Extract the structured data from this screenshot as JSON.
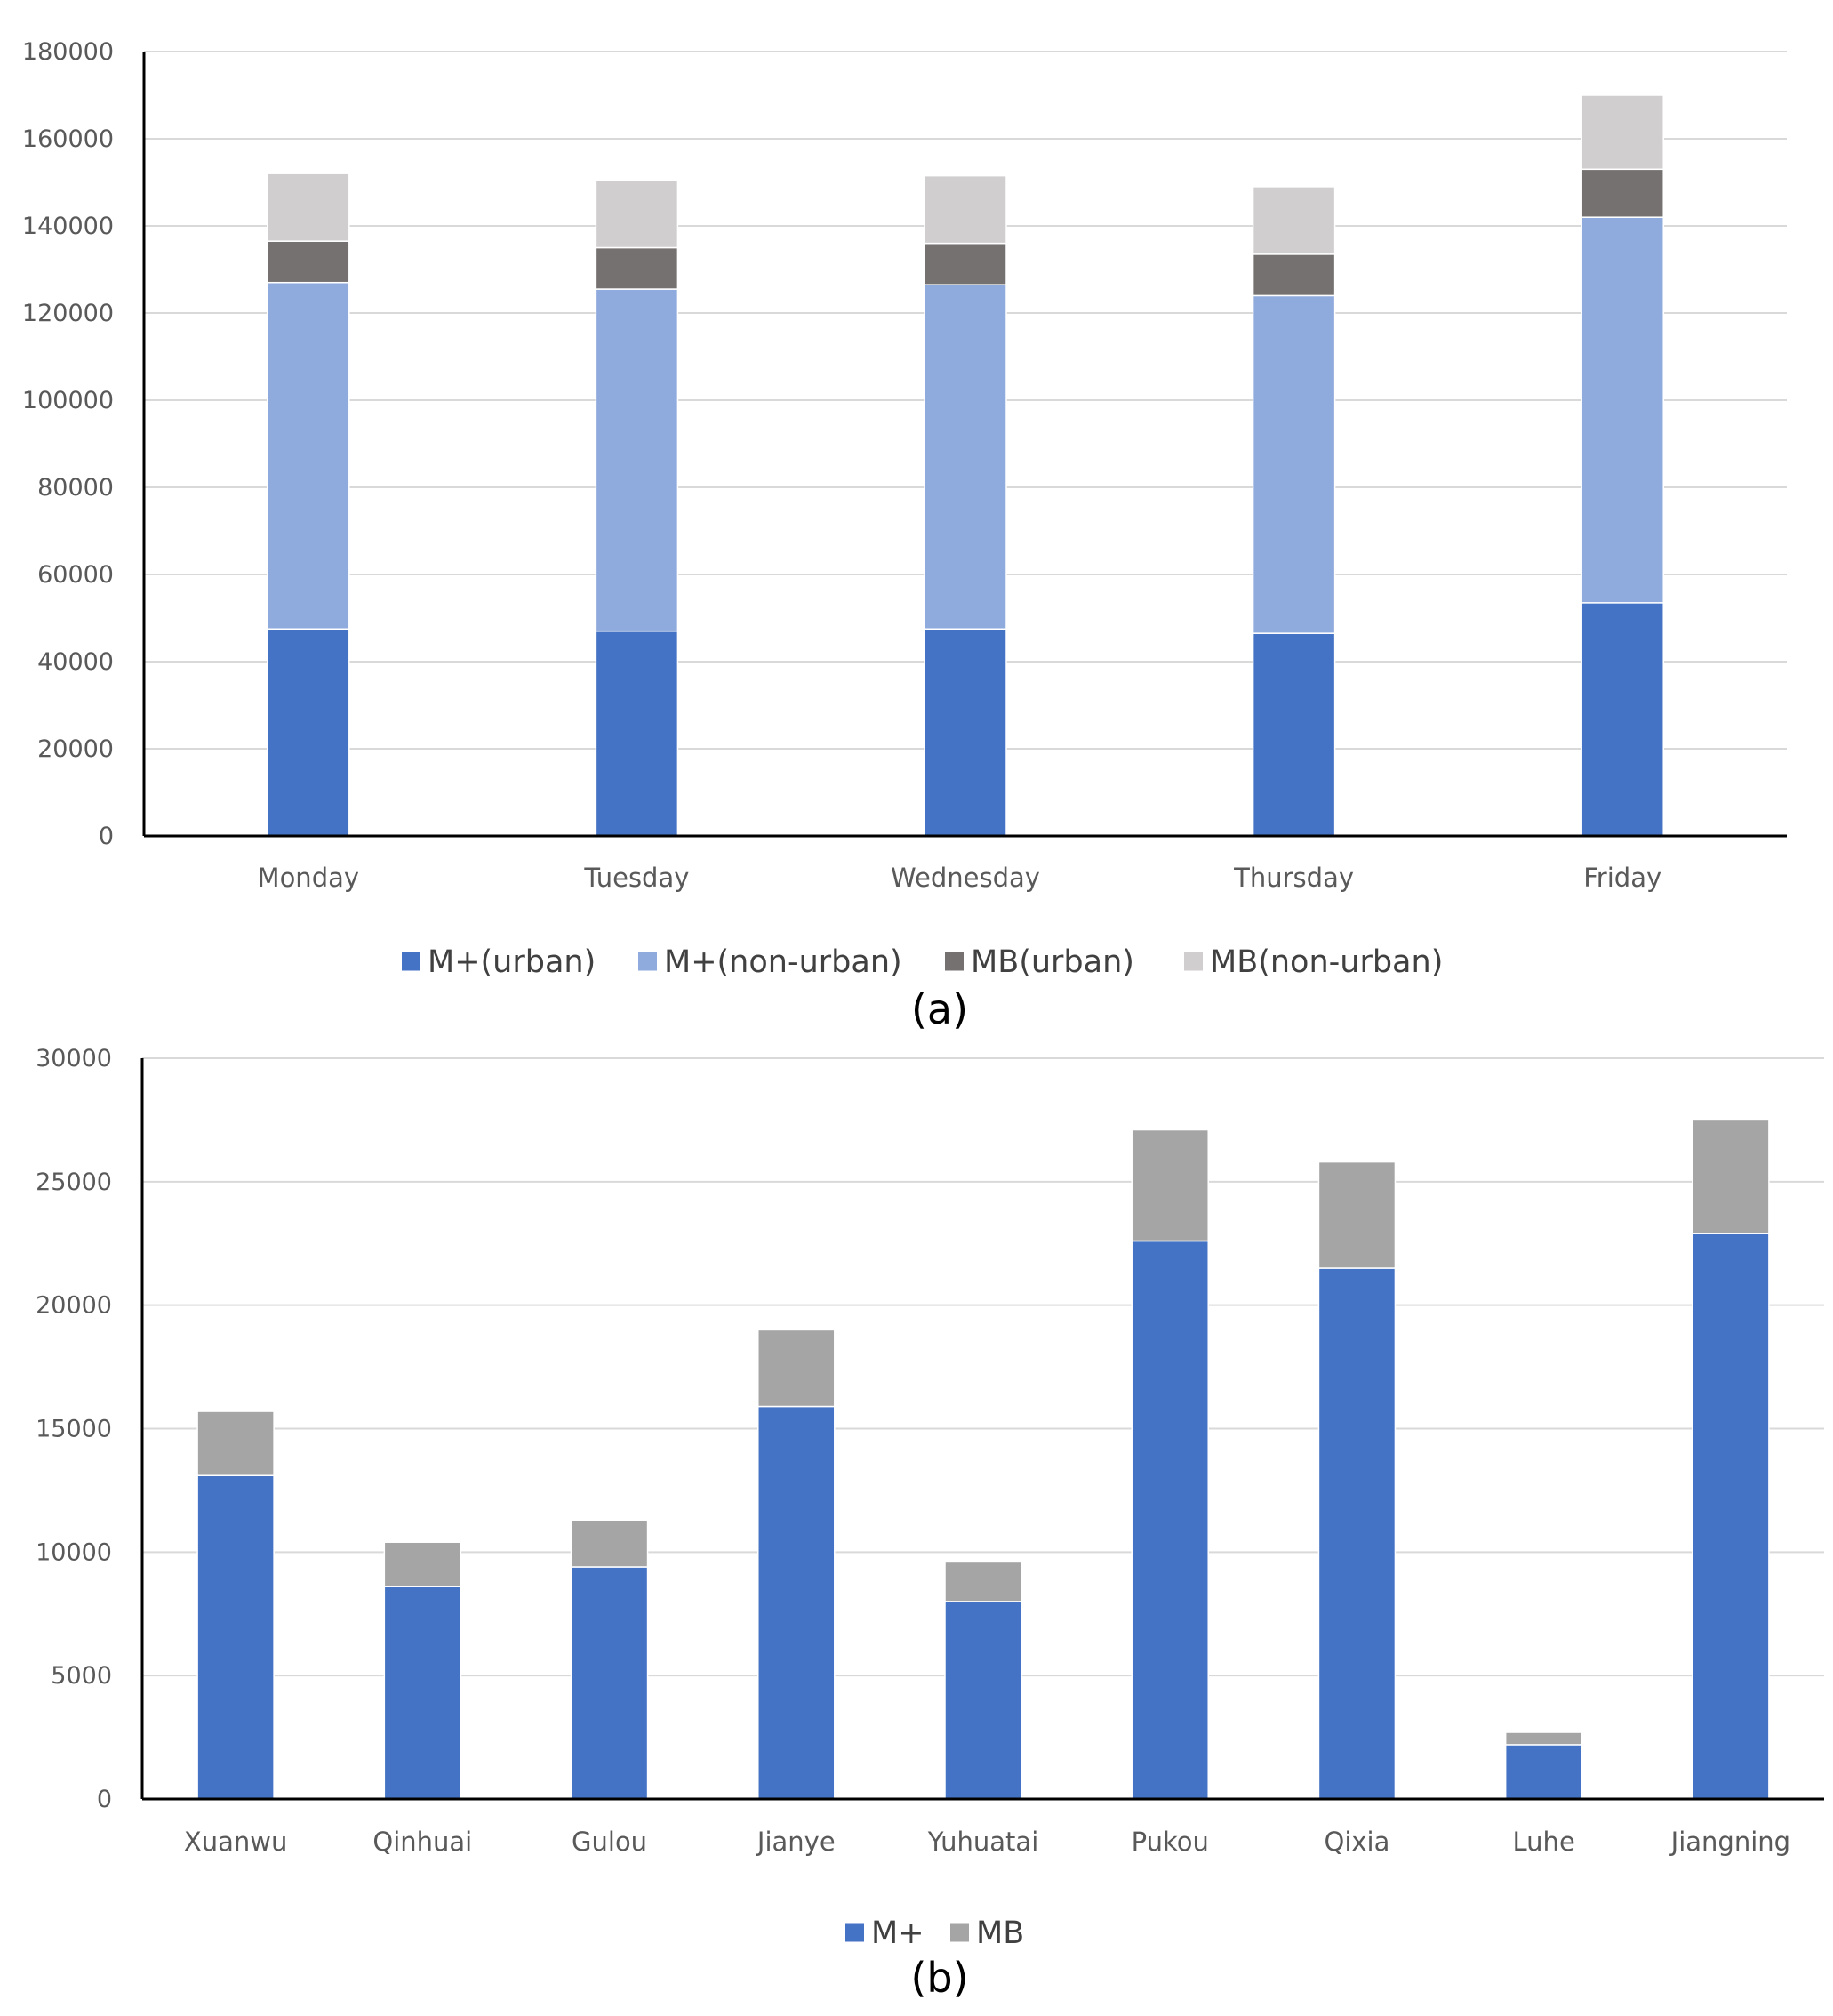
{
  "chart_data": [
    {
      "id": "a",
      "type": "bar",
      "stacked": true,
      "panel_label": "(a)",
      "categories": [
        "Monday",
        "Tuesday",
        "Wednesday",
        "Thursday",
        "Friday"
      ],
      "series": [
        {
          "name": "M+(urban)",
          "color": "#4472C4",
          "values": [
            47500,
            47000,
            47500,
            46500,
            53500
          ]
        },
        {
          "name": "M+(non-urban)",
          "color": "#8FAADC",
          "values": [
            79500,
            78500,
            79000,
            77500,
            88500
          ]
        },
        {
          "name": "MB(urban)",
          "color": "#767171",
          "values": [
            9500,
            9500,
            9500,
            9500,
            11000
          ]
        },
        {
          "name": "MB(non-urban)",
          "color": "#D0CECE",
          "values": [
            15500,
            15500,
            15500,
            15500,
            17000
          ]
        }
      ],
      "ylim": [
        0,
        180000
      ],
      "yticks": [
        "0",
        "20000",
        "40000",
        "60000",
        "80000",
        "100000",
        "120000",
        "140000",
        "160000",
        "180000"
      ],
      "grid": true,
      "legend": "bottom"
    },
    {
      "id": "b",
      "type": "bar",
      "stacked": true,
      "panel_label": "(b)",
      "categories": [
        "Xuanwu",
        "Qinhuai",
        "Gulou",
        "Jianye",
        "Yuhuatai",
        "Pukou",
        "Qixia",
        "Luhe",
        "Jiangning"
      ],
      "series": [
        {
          "name": "M+",
          "color": "#4472C4",
          "values": [
            13100,
            8600,
            9400,
            15900,
            8000,
            22600,
            21500,
            2200,
            22900
          ]
        },
        {
          "name": "MB",
          "color": "#A5A5A5",
          "values": [
            2600,
            1800,
            1900,
            3100,
            1600,
            4500,
            4300,
            500,
            4600
          ]
        }
      ],
      "ylim": [
        0,
        30000
      ],
      "yticks": [
        "0",
        "5000",
        "10000",
        "15000",
        "20000",
        "25000",
        "30000"
      ],
      "grid": true,
      "legend": "bottom"
    }
  ]
}
